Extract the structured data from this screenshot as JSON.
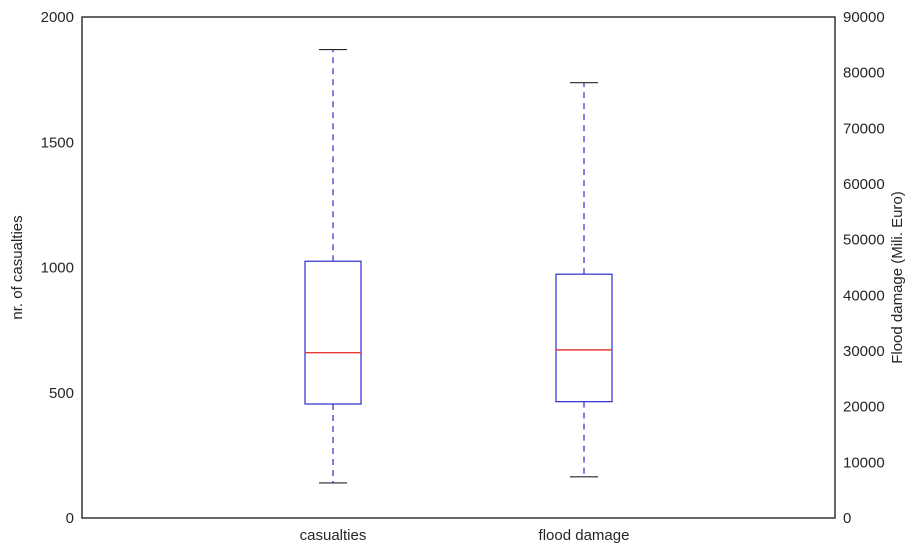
{
  "chart_data": {
    "type": "box",
    "grid": false,
    "categories": [
      "casualties",
      "flood damage"
    ],
    "left_axis": {
      "label": "nr. of casualties",
      "ylim": [
        0,
        2000
      ],
      "ticks": [
        0,
        500,
        1000,
        1500,
        2000
      ],
      "tick_labels": [
        "0",
        "500",
        "1000",
        "1500",
        "2000"
      ]
    },
    "right_axis": {
      "label": "Flood damage (Mili. Euro)",
      "ylim": [
        0,
        90000
      ],
      "ticks": [
        0,
        10000,
        20000,
        30000,
        40000,
        50000,
        60000,
        70000,
        80000,
        90000
      ],
      "tick_labels": [
        "0",
        "10000",
        "20000",
        "30000",
        "40000",
        "50000",
        "60000",
        "70000",
        "80000",
        "90000"
      ]
    },
    "boxes": [
      {
        "name": "casualties",
        "axis": "left",
        "whisker_low": 140,
        "q1": 455,
        "median": 660,
        "q3": 1025,
        "whisker_high": 1870
      },
      {
        "name": "flood damage",
        "axis": "right",
        "whisker_low": 7400,
        "q1": 20900,
        "median": 30200,
        "q3": 43800,
        "whisker_high": 78200
      }
    ],
    "colors": {
      "box": "#2b2bd1",
      "median": "#e83a3a",
      "whisker": "#2b2bd1",
      "cap": "#262626",
      "axes": "#262626"
    }
  }
}
